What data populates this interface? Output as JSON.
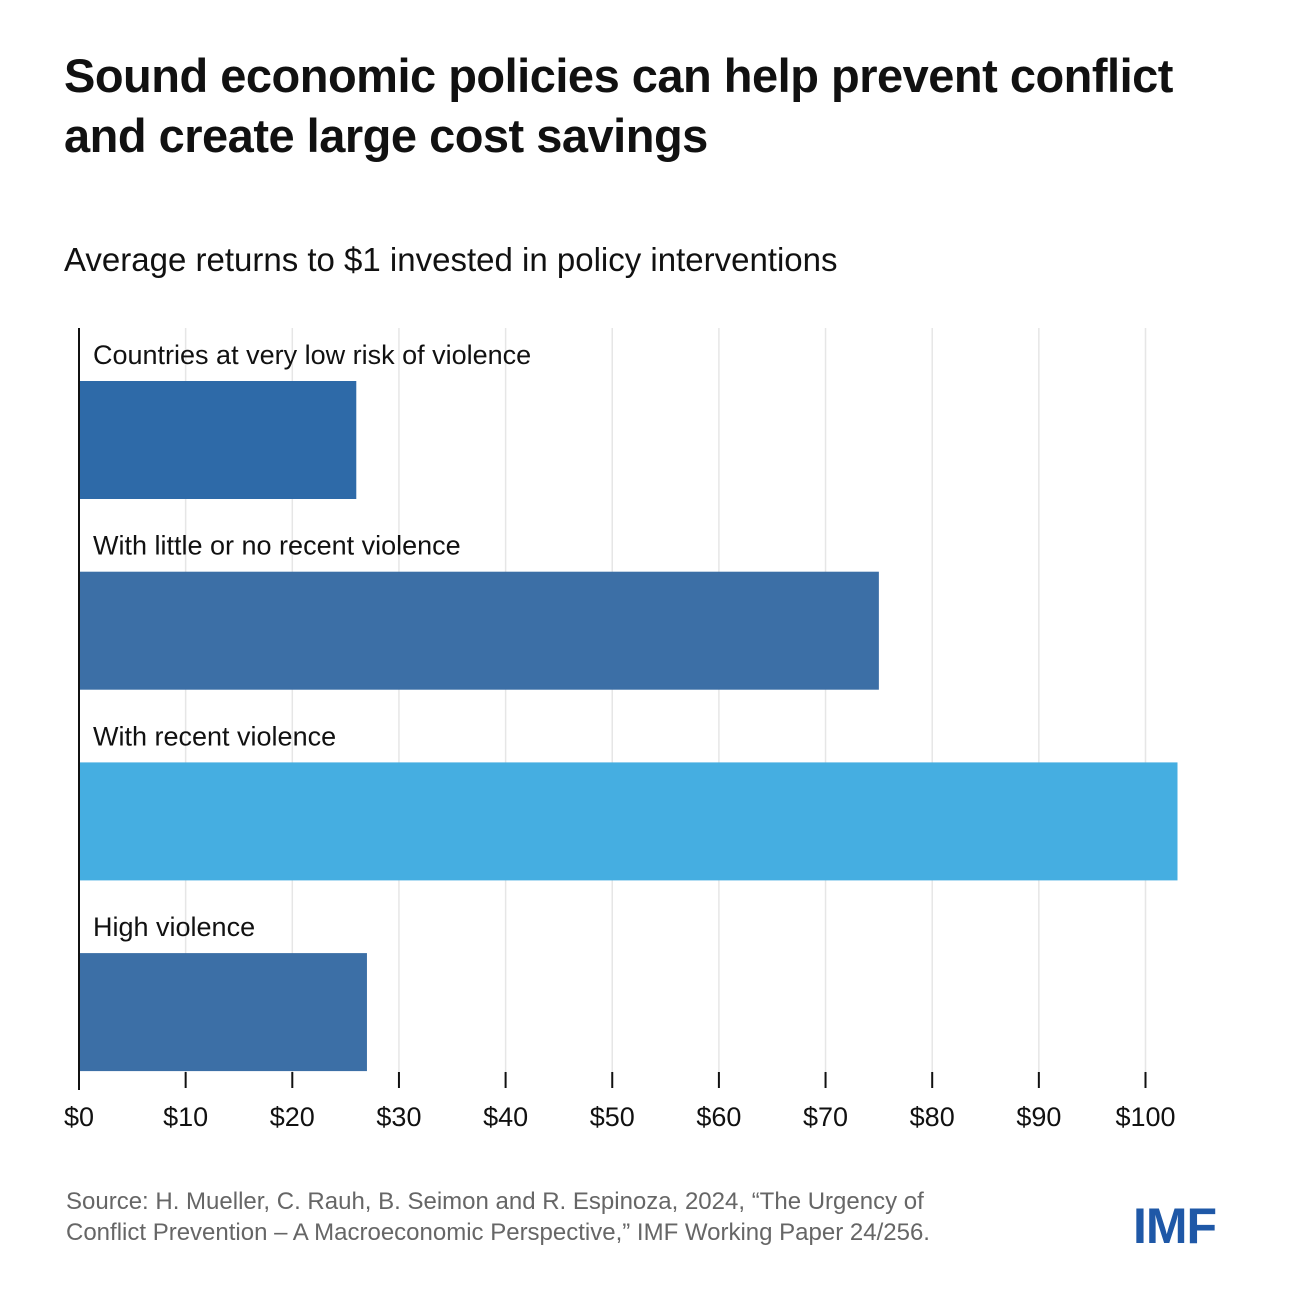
{
  "header": {
    "title": "Sound economic policies can help prevent conflict and create large cost savings",
    "subtitle": "Average returns to $1 invested in policy interventions"
  },
  "chart_data": {
    "type": "bar",
    "orientation": "horizontal",
    "title": "Sound economic policies can help prevent conflict and create large cost savings",
    "subtitle": "Average returns to $1 invested in policy interventions",
    "categories": [
      "Countries at very low risk of violence",
      "With little or no recent violence",
      "With recent violence",
      "High violence"
    ],
    "values": [
      26,
      75,
      103,
      27
    ],
    "colors": [
      "#2e6aa8",
      "#3c6fa6",
      "#45aee1",
      "#3c6fa6"
    ],
    "xlim": [
      0,
      100
    ],
    "xticks": [
      0,
      10,
      20,
      30,
      40,
      50,
      60,
      70,
      80,
      90,
      100
    ],
    "xtick_labels": [
      "$0",
      "$10",
      "$20",
      "$30",
      "$40",
      "$50",
      "$60",
      "$70",
      "$80",
      "$90",
      "$100"
    ],
    "xlabel": "",
    "ylabel": "",
    "grid": "vertical"
  },
  "footer": {
    "source_line1": "Source: H. Mueller, C. Rauh, B. Seimon and R. Espinoza, 2024, “The Urgency of",
    "source_line2": "Conflict Prevention – A Macroeconomic Perspective,” IMF Working Paper 24/256.",
    "logo_text": "IMF"
  },
  "colors": {
    "logo": "#1f58a7",
    "grid": "#e6e6e6",
    "axis": "#111111"
  }
}
